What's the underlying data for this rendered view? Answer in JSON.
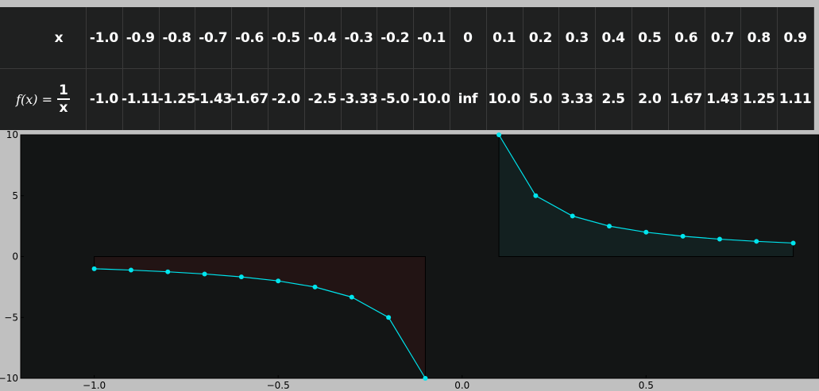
{
  "table": {
    "x_header": "x",
    "fx_name": "f(x) =",
    "fx_numerator": "1",
    "fx_denominator": "x",
    "x_values": [
      "-1.0",
      "-0.9",
      "-0.8",
      "-0.7",
      "-0.6",
      "-0.5",
      "-0.4",
      "-0.3",
      "-0.2",
      "-0.1",
      "0",
      "0.1",
      "0.2",
      "0.3",
      "0.4",
      "0.5",
      "0.6",
      "0.7",
      "0.8",
      "0.9"
    ],
    "fx_values": [
      "-1.0",
      "-1.11",
      "-1.25",
      "-1.43",
      "-1.67",
      "-2.0",
      "-2.5",
      "-3.33",
      "-5.0",
      "-10.0",
      "inf",
      "10.0",
      "5.0",
      "3.33",
      "2.5",
      "2.0",
      "1.67",
      "1.43",
      "1.25",
      "1.11"
    ]
  },
  "chart_data": {
    "type": "line",
    "title": "",
    "xlabel": "",
    "ylabel": "",
    "xlim": [
      -1.2,
      0.97
    ],
    "ylim": [
      -10,
      10
    ],
    "xticks": [
      -1.0,
      -0.5,
      0.0,
      0.5
    ],
    "xtick_labels": [
      "−1.0",
      "−0.5",
      "0.0",
      "0.5"
    ],
    "yticks": [
      10,
      5,
      0,
      -5,
      -10
    ],
    "ytick_labels": [
      "10",
      "5",
      "0",
      "−5",
      "−10"
    ],
    "grid": false,
    "series": [
      {
        "x": [
          -1.0,
          -0.9,
          -0.8,
          -0.7,
          -0.6,
          -0.5,
          -0.4,
          -0.3,
          -0.2,
          -0.1
        ],
        "y": [
          -1.0,
          -1.11,
          -1.25,
          -1.43,
          -1.67,
          -2.0,
          -2.5,
          -3.33,
          -5.0,
          -10.0
        ],
        "fill_color": "#221414"
      },
      {
        "x": [
          0.1,
          0.2,
          0.3,
          0.4,
          0.5,
          0.6,
          0.7,
          0.8,
          0.9
        ],
        "y": [
          10.0,
          5.0,
          3.33,
          2.5,
          2.0,
          1.67,
          1.43,
          1.25,
          1.11
        ],
        "fill_color": "#132020"
      }
    ],
    "line_color": "#00e5ee",
    "background": "#131515"
  }
}
